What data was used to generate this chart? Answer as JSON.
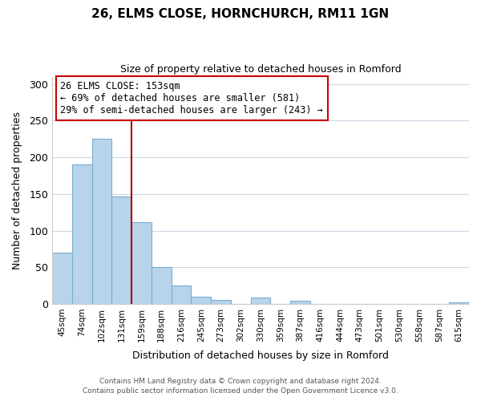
{
  "title": "26, ELMS CLOSE, HORNCHURCH, RM11 1GN",
  "subtitle": "Size of property relative to detached houses in Romford",
  "xlabel": "Distribution of detached houses by size in Romford",
  "ylabel": "Number of detached properties",
  "bin_labels": [
    "45sqm",
    "74sqm",
    "102sqm",
    "131sqm",
    "159sqm",
    "188sqm",
    "216sqm",
    "245sqm",
    "273sqm",
    "302sqm",
    "330sqm",
    "359sqm",
    "387sqm",
    "416sqm",
    "444sqm",
    "473sqm",
    "501sqm",
    "530sqm",
    "558sqm",
    "587sqm",
    "615sqm"
  ],
  "bar_heights": [
    70,
    190,
    225,
    147,
    111,
    50,
    25,
    10,
    5,
    0,
    9,
    0,
    4,
    0,
    0,
    0,
    0,
    0,
    0,
    0,
    2
  ],
  "bar_color": "#b8d4ea",
  "bar_edge_color": "#7aaed0",
  "ylim": [
    0,
    310
  ],
  "yticks": [
    0,
    50,
    100,
    150,
    200,
    250,
    300
  ],
  "red_line_index": 3.5,
  "annotation_title": "26 ELMS CLOSE: 153sqm",
  "annotation_line1": "← 69% of detached houses are smaller (581)",
  "annotation_line2": "29% of semi-detached houses are larger (243) →",
  "red_line_color": "#aa0000",
  "footer1": "Contains HM Land Registry data © Crown copyright and database right 2024.",
  "footer2": "Contains public sector information licensed under the Open Government Licence v3.0.",
  "background_color": "#ffffff",
  "grid_color": "#ccd8e8"
}
